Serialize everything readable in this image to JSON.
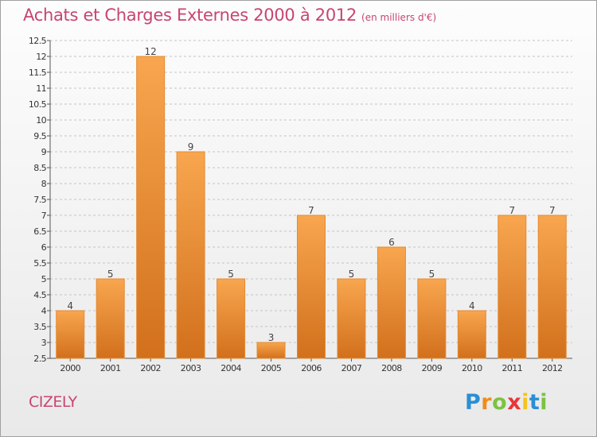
{
  "header": {
    "title": "Achats et Charges Externes 2000 à 2012",
    "subtitle": "(en milliers d'€)"
  },
  "footer": {
    "commune": "CIZELY",
    "logo_letters": [
      {
        "char": "P",
        "color": "#2a8fd4"
      },
      {
        "char": "r",
        "color": "#f08c1a"
      },
      {
        "char": "o",
        "color": "#7cc242"
      },
      {
        "char": "x",
        "color": "#e8353a"
      },
      {
        "char": "i",
        "color": "#f6c31c"
      },
      {
        "char": "t",
        "color": "#2a8fd4"
      },
      {
        "char": "i",
        "color": "#7cc242"
      }
    ]
  },
  "colors": {
    "bar_light": "#f8a64f",
    "bar_dark": "#d2701c",
    "accent": "#c8456f"
  },
  "chart_data": {
    "type": "bar",
    "title": "Achats et Charges Externes 2000 à 2012",
    "subtitle": "(en milliers d'€)",
    "categories": [
      "2000",
      "2001",
      "2002",
      "2003",
      "2004",
      "2005",
      "2006",
      "2007",
      "2008",
      "2009",
      "2010",
      "2011",
      "2012"
    ],
    "values": [
      4,
      5,
      12,
      9,
      5,
      3,
      7,
      5,
      6,
      5,
      4,
      7,
      7
    ],
    "data_labels": [
      "4",
      "5",
      "12",
      "9",
      "5",
      "3",
      "7",
      "5",
      "6",
      "5",
      "4",
      "7",
      "7"
    ],
    "ylim": [
      2.5,
      12.5
    ],
    "ytick_step": 0.5,
    "ytick_labels": [
      "2.5",
      "3",
      "3.5",
      "4",
      "4.5",
      "5",
      "5.5",
      "6",
      "6.5",
      "7",
      "7.5",
      "8",
      "8.5",
      "9",
      "9.5",
      "10",
      "10.5",
      "11",
      "11.5",
      "12",
      "12.5"
    ],
    "grid": "horizontal dashed",
    "legend": "none"
  }
}
